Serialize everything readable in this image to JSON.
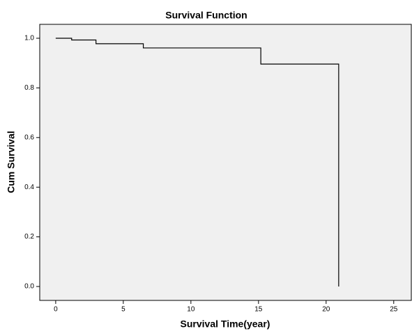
{
  "chart_data": {
    "type": "step",
    "title": "Survival  Function",
    "x_label": "Survival Time(year)",
    "y_label": "Cum Survival",
    "x": [
      0,
      1.18,
      2.98,
      6.48,
      15.17,
      20.93
    ],
    "values": [
      1.0,
      0.993,
      0.978,
      0.961,
      0.896,
      0.0
    ],
    "color": "#000000",
    "background": "#f0f0f0",
    "xlim": [
      -1.18,
      26.3
    ],
    "ylim": [
      -0.056,
      1.056
    ],
    "xticks": [
      0,
      5,
      10,
      15,
      20,
      25
    ],
    "yticks": [
      {
        "value": 0.0,
        "label": "0.0"
      },
      0.2,
      0.4,
      0.6,
      0.8,
      {
        "value": 1.0,
        "label": "1.0"
      }
    ]
  }
}
